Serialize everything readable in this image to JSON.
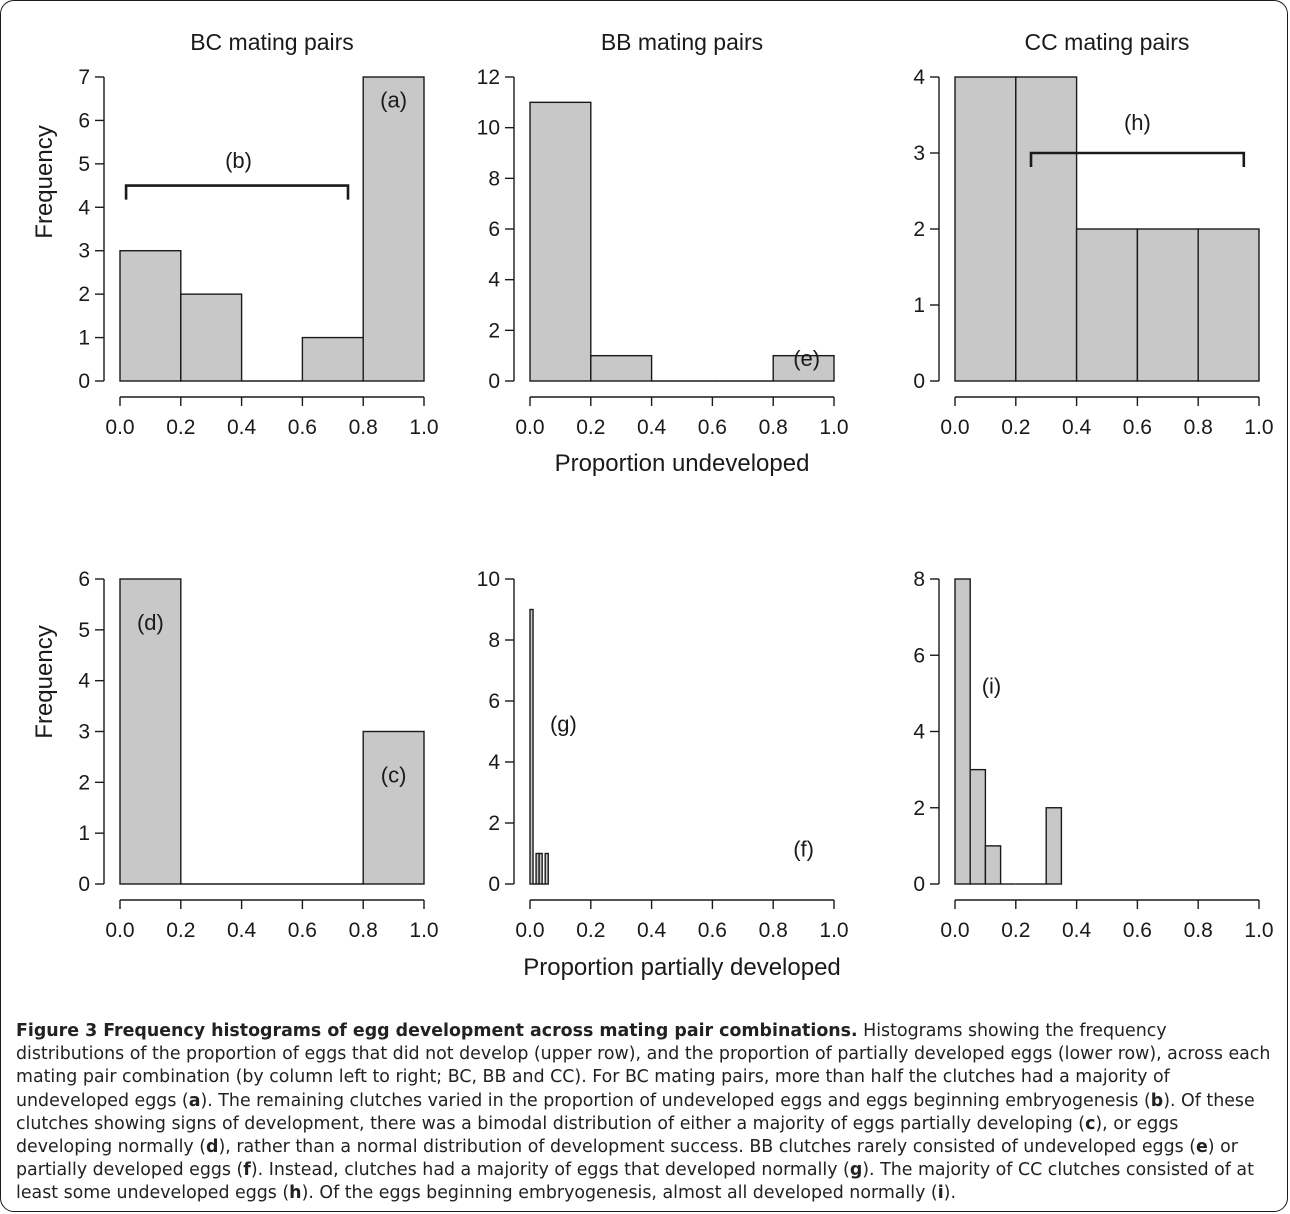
{
  "chart_data": [
    {
      "type": "bar",
      "title": "BC mating pairs",
      "xlabel": "",
      "ylabel": "Frequency",
      "bin_edges": [
        0.0,
        0.2,
        0.4,
        0.6,
        0.8,
        1.0
      ],
      "values": [
        3,
        2,
        0,
        1,
        7
      ],
      "xlim": [
        0.0,
        1.0
      ],
      "ylim": [
        0,
        7
      ],
      "xticks": [
        "0.0",
        "0.2",
        "0.4",
        "0.6",
        "0.8",
        "1.0"
      ],
      "yticks": [
        "0",
        "1",
        "2",
        "3",
        "4",
        "5",
        "6",
        "7"
      ],
      "annotations": [
        {
          "text": "(a)",
          "x": 0.9,
          "y": 6.3
        },
        {
          "text": "(b)",
          "x": 0.39,
          "y": 4.9
        }
      ],
      "brackets": [
        {
          "x_start": 0.02,
          "x_end": 0.75,
          "y": 4.5
        }
      ]
    },
    {
      "type": "bar",
      "title": "BB mating pairs",
      "xlabel": "Proportion undeveloped",
      "ylabel": "",
      "bin_edges": [
        0.0,
        0.2,
        0.4,
        0.6,
        0.8,
        1.0
      ],
      "values": [
        11,
        1,
        0,
        0,
        1
      ],
      "xlim": [
        0.0,
        1.0
      ],
      "ylim": [
        0,
        12
      ],
      "xticks": [
        "0.0",
        "0.2",
        "0.4",
        "0.6",
        "0.8",
        "1.0"
      ],
      "yticks": [
        "0",
        "2",
        "4",
        "6",
        "8",
        "10",
        "12"
      ],
      "annotations": [
        {
          "text": "(e)",
          "x": 0.91,
          "y": 0.6
        }
      ],
      "brackets": []
    },
    {
      "type": "bar",
      "title": "CC mating pairs",
      "xlabel": "",
      "ylabel": "",
      "bin_edges": [
        0.0,
        0.2,
        0.4,
        0.6,
        0.8,
        1.0
      ],
      "values": [
        4,
        4,
        2,
        2,
        2
      ],
      "xlim": [
        0.0,
        1.0
      ],
      "ylim": [
        0,
        4
      ],
      "xticks": [
        "0.0",
        "0.2",
        "0.4",
        "0.6",
        "0.8",
        "1.0"
      ],
      "yticks": [
        "0",
        "1",
        "2",
        "3",
        "4"
      ],
      "annotations": [
        {
          "text": "(h)",
          "x": 0.6,
          "y": 3.3
        }
      ],
      "brackets": [
        {
          "x_start": 0.25,
          "x_end": 0.95,
          "y": 3.0
        }
      ]
    },
    {
      "type": "bar",
      "title": "",
      "xlabel": "",
      "ylabel": "Frequency",
      "bin_edges": [
        0.0,
        0.2,
        0.4,
        0.6,
        0.8,
        1.0
      ],
      "values": [
        6,
        0,
        0,
        0,
        3
      ],
      "xlim": [
        0.0,
        1.0
      ],
      "ylim": [
        0,
        6
      ],
      "xticks": [
        "0.0",
        "0.2",
        "0.4",
        "0.6",
        "0.8",
        "1.0"
      ],
      "yticks": [
        "0",
        "1",
        "2",
        "3",
        "4",
        "5",
        "6"
      ],
      "annotations": [
        {
          "text": "(d)",
          "x": 0.1,
          "y": 5.0
        },
        {
          "text": "(c)",
          "x": 0.9,
          "y": 2.0
        }
      ],
      "brackets": []
    },
    {
      "type": "bar",
      "title": "",
      "xlabel": "Proportion partially developed",
      "ylabel": "",
      "bin_edges": [
        0.0,
        0.01,
        0.02,
        0.03,
        0.04,
        0.05,
        0.06
      ],
      "values": [
        9,
        0,
        1,
        1,
        0,
        1
      ],
      "xlim": [
        0.0,
        1.0
      ],
      "ylim": [
        0,
        10
      ],
      "xticks": [
        "0.0",
        "0.2",
        "0.4",
        "0.6",
        "0.8",
        "1.0"
      ],
      "yticks": [
        "0",
        "2",
        "4",
        "6",
        "8",
        "10"
      ],
      "annotations": [
        {
          "text": "(g)",
          "x": 0.11,
          "y": 5.0
        },
        {
          "text": "(f)",
          "x": 0.9,
          "y": 0.9
        }
      ],
      "brackets": []
    },
    {
      "type": "bar",
      "title": "",
      "xlabel": "",
      "ylabel": "",
      "bin_edges": [
        0.0,
        0.05,
        0.1,
        0.15,
        0.2,
        0.25,
        0.3,
        0.35
      ],
      "values": [
        8,
        3,
        1,
        0,
        0,
        0,
        2
      ],
      "xlim": [
        0.0,
        1.0
      ],
      "ylim": [
        0,
        8
      ],
      "xticks": [
        "0.0",
        "0.2",
        "0.4",
        "0.6",
        "0.8",
        "1.0"
      ],
      "yticks": [
        "0",
        "2",
        "4",
        "6",
        "8"
      ],
      "annotations": [
        {
          "text": "(i)",
          "x": 0.12,
          "y": 5.0
        }
      ],
      "brackets": []
    }
  ],
  "colors": {
    "bar_fill": "#c8c8c8",
    "stroke": "#1a1a1a"
  },
  "caption": {
    "title": "Figure 3 Frequency histograms of egg development across mating pair combinations.",
    "segments": [
      {
        "text": " Histograms showing the frequency distributions of the proportion of eggs that did not develop (upper row), and the proportion of partially developed eggs (lower row), across each mating pair combination (by column left to right; BC, BB and CC). For BC mating pairs, more than half the clutches had a majority of undeveloped eggs (",
        "bold": false
      },
      {
        "text": "a",
        "bold": true
      },
      {
        "text": "). The remaining clutches varied in the proportion of undeveloped eggs and eggs beginning embryogenesis (",
        "bold": false
      },
      {
        "text": "b",
        "bold": true
      },
      {
        "text": "). Of these clutches showing signs of development, there was a bimodal distribution of either a majority of eggs partially developing (",
        "bold": false
      },
      {
        "text": "c",
        "bold": true
      },
      {
        "text": "), or eggs developing normally (",
        "bold": false
      },
      {
        "text": "d",
        "bold": true
      },
      {
        "text": "), rather than a normal distribution of development success. BB clutches rarely consisted of undeveloped eggs (",
        "bold": false
      },
      {
        "text": "e",
        "bold": true
      },
      {
        "text": ") or partially developed eggs (",
        "bold": false
      },
      {
        "text": "f",
        "bold": true
      },
      {
        "text": "). Instead, clutches had a majority of eggs that developed normally (",
        "bold": false
      },
      {
        "text": "g",
        "bold": true
      },
      {
        "text": "). The majority of CC clutches consisted of at least some undeveloped eggs (",
        "bold": false
      },
      {
        "text": "h",
        "bold": true
      },
      {
        "text": "). Of the eggs beginning embryogenesis, almost all developed normally (",
        "bold": false
      },
      {
        "text": "i",
        "bold": true
      },
      {
        "text": ").",
        "bold": false
      }
    ]
  }
}
